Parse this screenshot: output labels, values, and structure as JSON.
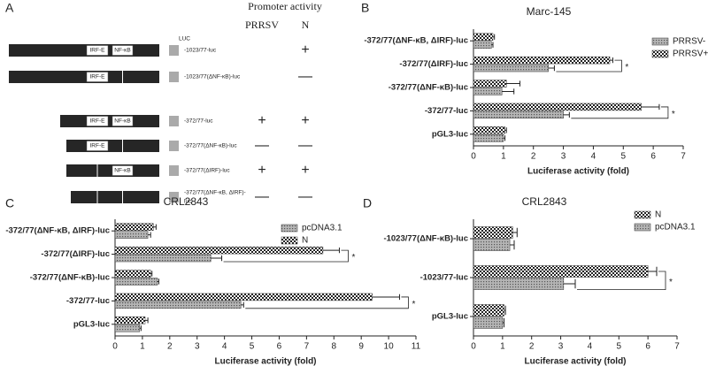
{
  "panel_a": {
    "label": "A",
    "header": "Promoter activity",
    "columns": [
      "PRRSV",
      "N"
    ],
    "luc": "LUC",
    "rows": [
      {
        "label": [
          "-1023/77-luc"
        ],
        "irf": "IRF-E",
        "nfkb": "NF-κB",
        "N": "+"
      },
      {
        "label": [
          "-1023/77(ΔNF-κB)-luc"
        ],
        "irf": "IRF-E",
        "N": "—"
      },
      {
        "label": [
          "-372/77-luc"
        ],
        "irf": "IRF-E",
        "nfkb": "NF-κB",
        "PRRSV": "+",
        "N": "+"
      },
      {
        "label": [
          "-372/77(ΔNF-κB)-luc"
        ],
        "irf": "IRF-E",
        "PRRSV": "—",
        "N": "—"
      },
      {
        "label": [
          "-372/77(ΔIRF)-luc"
        ],
        "nfkb": "NF-κB",
        "PRRSV": "+",
        "N": "+"
      },
      {
        "label": [
          "-372/77(ΔNF-κB, ΔIRF)-",
          "luc"
        ],
        "PRRSV": "—",
        "N": "—"
      }
    ]
  },
  "chart_data": [
    {
      "type": "bar",
      "orientation": "horizontal",
      "label": "B",
      "title": "Marc-145",
      "x_label": "Luciferase activity (fold)",
      "categories": [
        "-372/77(ΔNF-κB, ΔIRF)-luc",
        "-372/77(ΔIRF)-luc",
        "-372/77(ΔNF-κB)-luc",
        "-372/77-luc",
        "pGL3-luc"
      ],
      "series": [
        {
          "name": "PRRSV-",
          "pattern": "dots",
          "color": "#9a9a9a",
          "values": [
            0.6,
            2.5,
            0.95,
            3.0,
            1.0
          ],
          "errors": [
            0.05,
            0.2,
            0.4,
            0.2,
            0.05
          ]
        },
        {
          "name": "PRRSV+",
          "pattern": "checker",
          "color": "#222222",
          "values": [
            0.65,
            4.55,
            1.1,
            5.6,
            1.05
          ],
          "errors": [
            0.05,
            0.1,
            0.45,
            0.6,
            0.05
          ]
        }
      ],
      "annotations": [
        {
          "text": "*",
          "category": "-372/77(ΔIRF)-luc"
        },
        {
          "text": "*",
          "category": "-372/77-luc"
        }
      ],
      "xlim": [
        0,
        7
      ],
      "xticks": [
        0,
        1,
        2,
        3,
        4,
        5,
        6,
        7
      ]
    },
    {
      "type": "bar",
      "orientation": "horizontal",
      "label": "C",
      "title": "CRL2843",
      "x_label": "Luciferase activity (fold)",
      "categories": [
        "-372/77(ΔNF-κB, ΔIRF)-luc",
        "-372/77(ΔIRF)-luc",
        "-372/77(ΔNF-κB)-luc",
        "-372/77-luc",
        "pGL3-luc"
      ],
      "series": [
        {
          "name": "pcDNA3.1",
          "pattern": "dots",
          "color": "#9a9a9a",
          "values": [
            1.2,
            3.5,
            1.55,
            4.6,
            0.9
          ],
          "errors": [
            0.1,
            0.4,
            0.05,
            0.1,
            0.05
          ]
        },
        {
          "name": "N",
          "pattern": "checker",
          "color": "#222222",
          "values": [
            1.4,
            7.6,
            1.3,
            9.4,
            1.1
          ],
          "errors": [
            0.1,
            0.6,
            0.05,
            1.0,
            0.1
          ]
        }
      ],
      "annotations": [
        {
          "text": "*",
          "category": "-372/77(ΔIRF)-luc"
        },
        {
          "text": "*",
          "category": "-372/77-luc"
        }
      ],
      "xlim": [
        0,
        11
      ],
      "xticks": [
        0,
        1,
        2,
        3,
        4,
        5,
        6,
        7,
        8,
        9,
        10,
        11
      ]
    },
    {
      "type": "bar",
      "orientation": "horizontal",
      "label": "D",
      "title": "CRL2843",
      "x_label": "Luciferase activity (fold)",
      "categories": [
        "-1023/77(ΔNF-κB)-luc",
        "-1023/77-luc",
        "pGL3-luc"
      ],
      "series": [
        {
          "name": "N",
          "pattern": "checker",
          "color": "#222222",
          "values": [
            1.35,
            6.0,
            1.05
          ],
          "errors": [
            0.15,
            0.3,
            0.05
          ]
        },
        {
          "name": "pcDNA3.1",
          "pattern": "dots",
          "color": "#9a9a9a",
          "values": [
            1.25,
            3.1,
            1.0
          ],
          "errors": [
            0.15,
            0.4,
            0.05
          ]
        }
      ],
      "annotations": [
        {
          "text": "*",
          "category": "-1023/77-luc"
        }
      ],
      "xlim": [
        0,
        7
      ],
      "xticks": [
        0,
        1,
        2,
        3,
        4,
        5,
        6,
        7
      ]
    }
  ]
}
